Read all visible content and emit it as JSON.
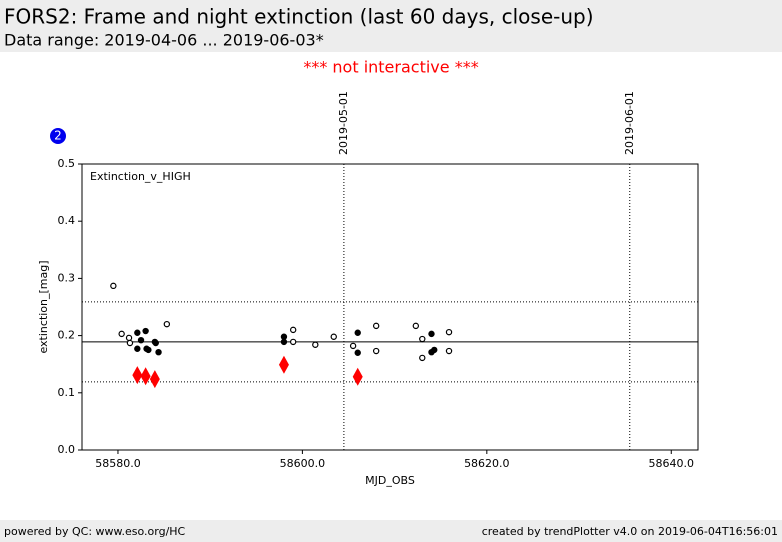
{
  "header": {
    "title": "FORS2: Frame and night extinction (last 60 days, close-up)",
    "subtitle": "Data range: 2019-04-06 ... 2019-06-03*"
  },
  "notice": "*** not interactive ***",
  "badge": "2",
  "chart_data": {
    "type": "scatter",
    "annotation": "Extinction_v_HIGH",
    "x_label": "MJD_OBS",
    "y_label": "extinction_[mag]",
    "xlim": [
      58576.1,
      58642.9
    ],
    "ylim": [
      0,
      0.5
    ],
    "xticks": [
      {
        "value": 58580,
        "label": "58580.0"
      },
      {
        "value": 58600,
        "label": "58600.0"
      },
      {
        "value": 58620,
        "label": "58620.0"
      },
      {
        "value": 58640,
        "label": "58640.0"
      }
    ],
    "yticks": [
      {
        "value": 0,
        "label": "0.0"
      },
      {
        "value": 0.1,
        "label": "0.1"
      },
      {
        "value": 0.2,
        "label": "0.2"
      },
      {
        "value": 0.3,
        "label": "0.3"
      },
      {
        "value": 0.4,
        "label": "0.4"
      },
      {
        "value": 0.5,
        "label": "0.5"
      }
    ],
    "vlines": [
      {
        "value": 58604.5,
        "label": "2019-05-01"
      },
      {
        "value": 58635.5,
        "label": "2019-06-01"
      }
    ],
    "hlines": [
      {
        "value": 0.189,
        "style": "solid"
      },
      {
        "value": 0.259,
        "style": "dotted"
      },
      {
        "value": 0.119,
        "style": "dotted"
      }
    ],
    "series": [
      {
        "marker": "open",
        "color": "#000000",
        "x": [
          58579.5,
          58580.4,
          58581.2,
          58581.3,
          58585.3,
          58599.0,
          58599.0,
          58601.4,
          58603.4,
          58605.5,
          58608.0,
          58608.0,
          58612.3,
          58613.0,
          58613.0,
          58615.9,
          58615.9
        ],
        "values": [
          0.287,
          0.203,
          0.196,
          0.187,
          0.22,
          0.21,
          0.189,
          0.184,
          0.198,
          0.182,
          0.217,
          0.173,
          0.217,
          0.194,
          0.161,
          0.206,
          0.173
        ]
      },
      {
        "marker": "filled",
        "color": "#000000",
        "x": [
          58582.1,
          58582.1,
          58582.5,
          58583.0,
          58583.1,
          58583.3,
          58584.0,
          58584.1,
          58584.4,
          58598.0,
          58598.0,
          58606.0,
          58606.0,
          58614.0,
          58614.0,
          58614.3
        ],
        "values": [
          0.205,
          0.177,
          0.192,
          0.208,
          0.177,
          0.175,
          0.189,
          0.187,
          0.171,
          0.198,
          0.189,
          0.205,
          0.17,
          0.203,
          0.171,
          0.175
        ]
      },
      {
        "marker": "diamond",
        "color": "#ff0000",
        "x": [
          58582.1,
          58583.0,
          58584.0,
          58598.0,
          58606.0
        ],
        "values": [
          0.131,
          0.129,
          0.124,
          0.149,
          0.128
        ]
      }
    ]
  },
  "footer": {
    "left": "powered by QC: www.eso.org/HC",
    "right": "created by trendPlotter v4.0 on 2019-06-04T16:56:01"
  }
}
